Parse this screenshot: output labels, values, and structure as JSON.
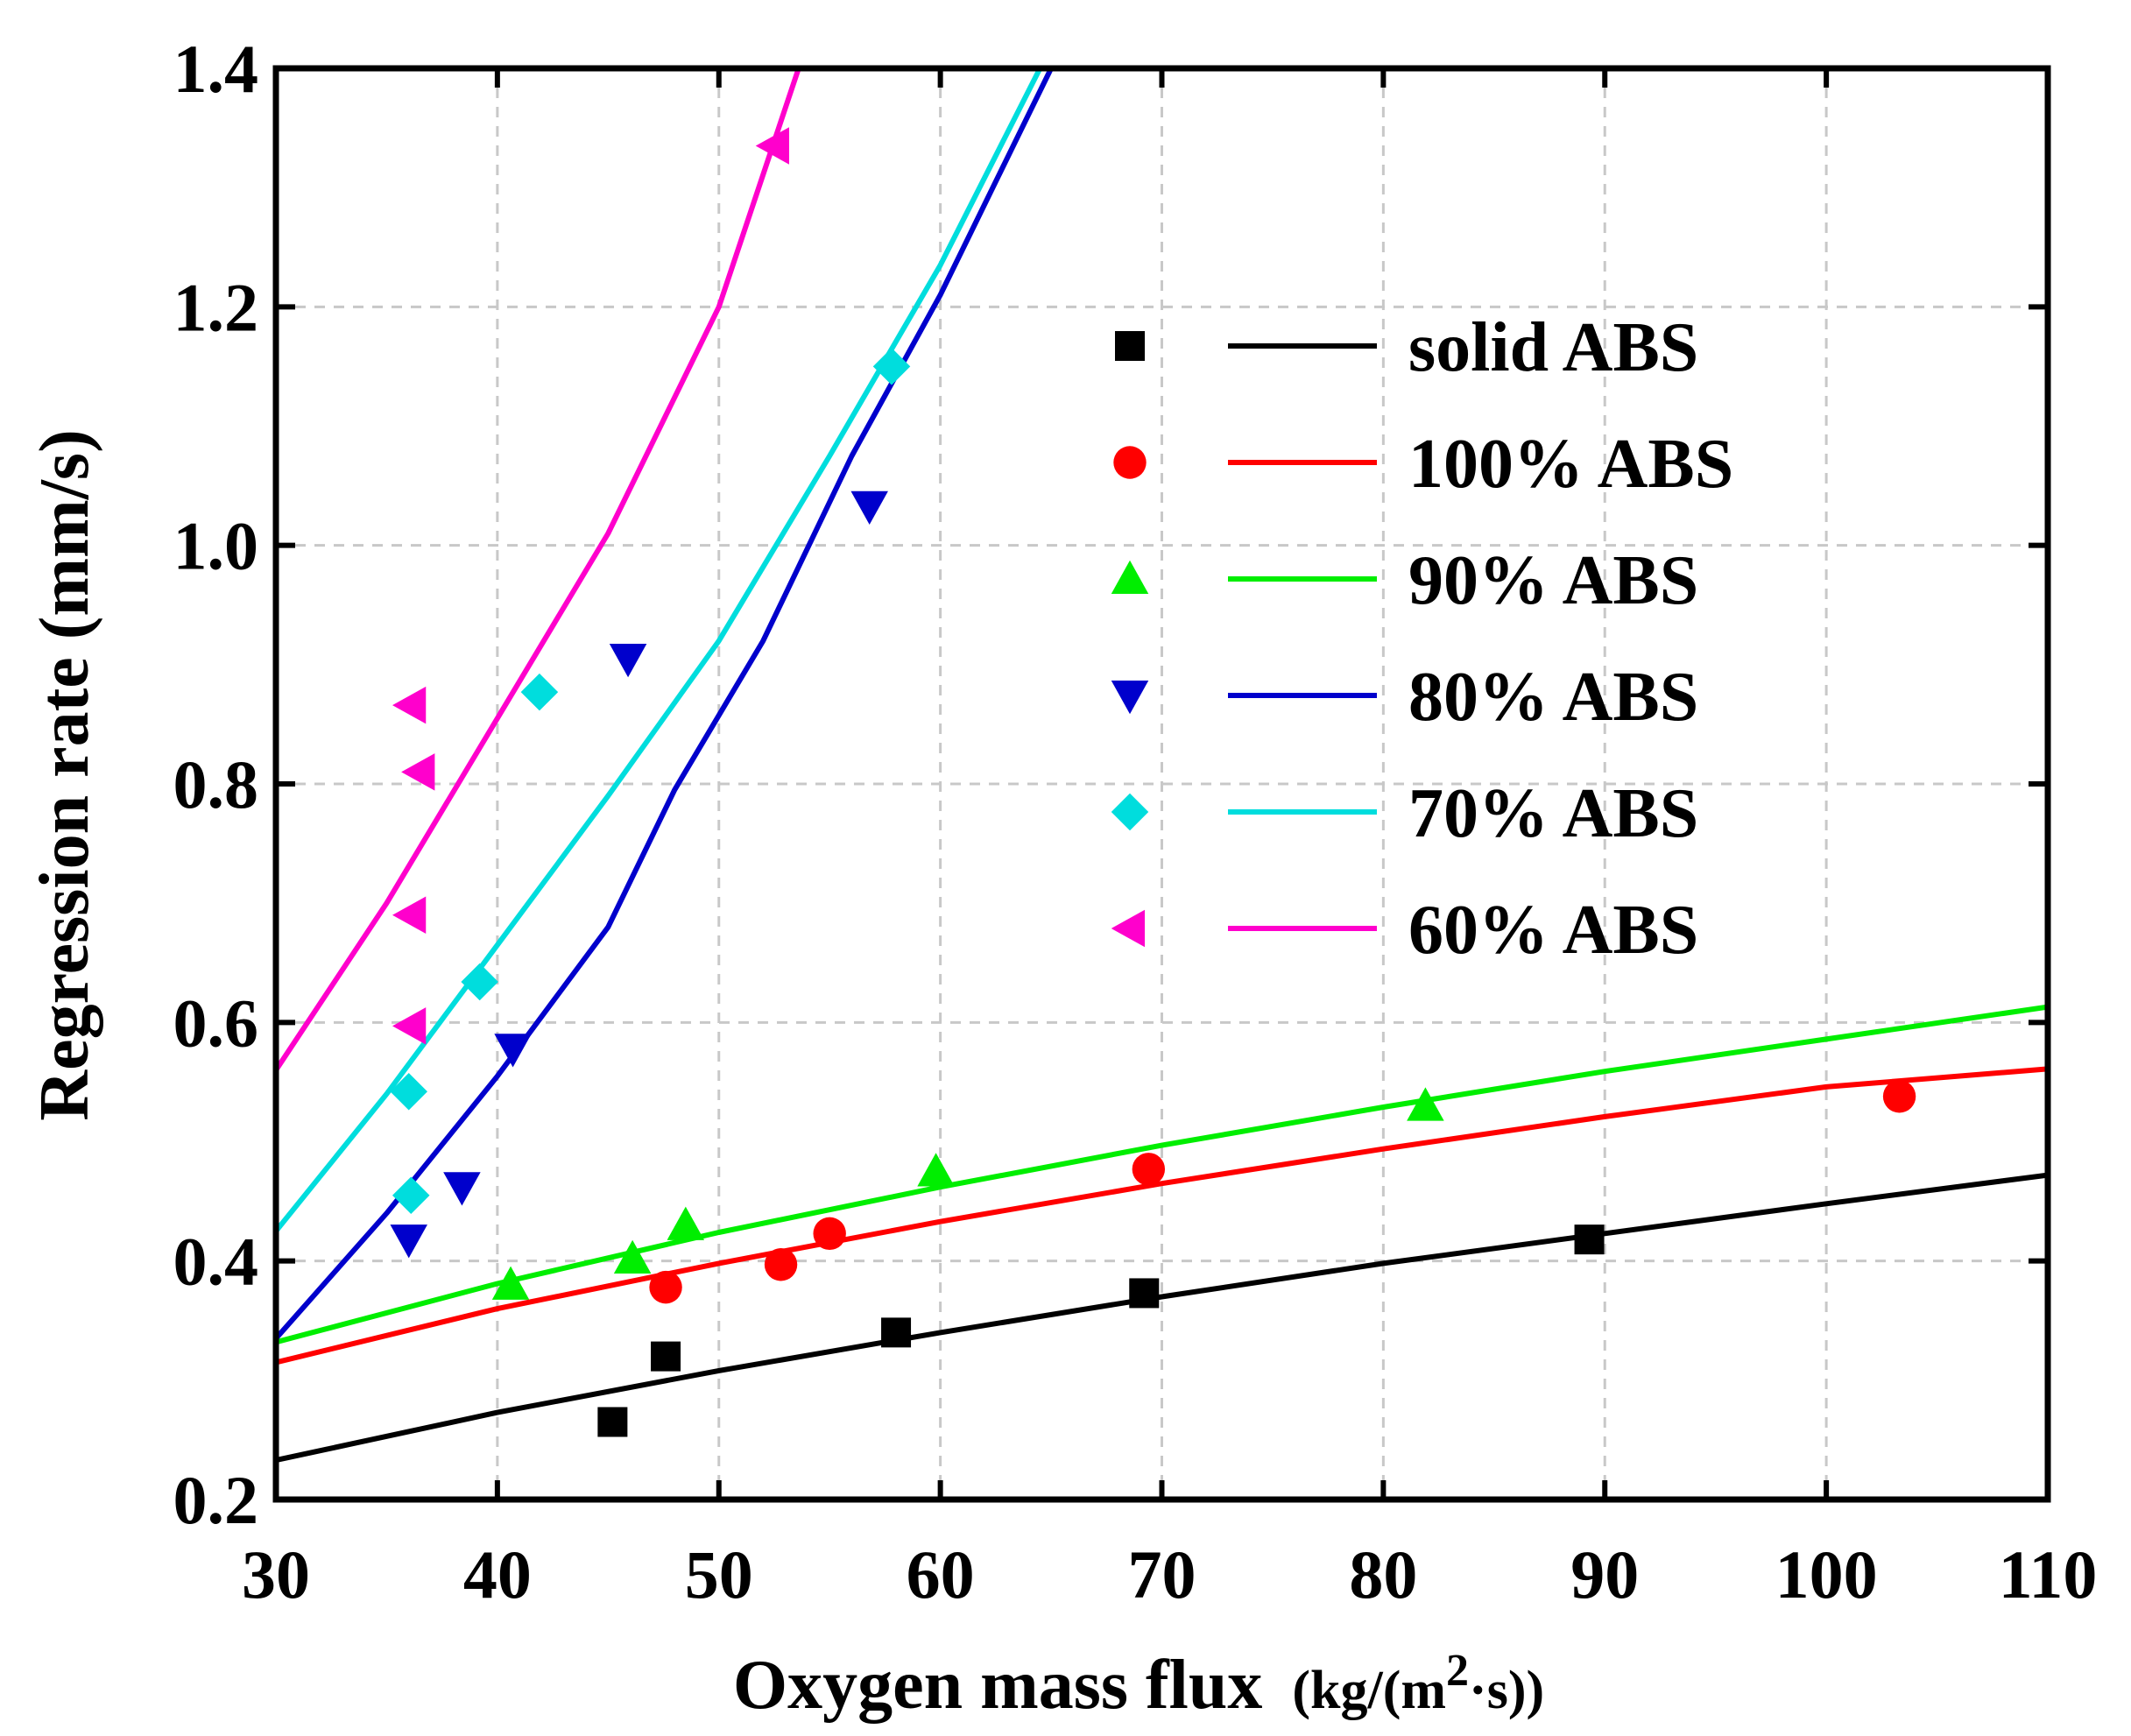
{
  "chart_data": {
    "type": "scatter",
    "title": "",
    "xlabel": "Oxygen mass flux",
    "xlabel_unit_pre": "(kg/(m",
    "xlabel_unit_sup": "2",
    "xlabel_unit_post": "·s))",
    "ylabel": "Regression rate (mm/s)",
    "xlim": [
      30,
      110
    ],
    "ylim": [
      0.2,
      1.4
    ],
    "xticks": [
      30,
      40,
      50,
      60,
      70,
      80,
      90,
      100,
      110
    ],
    "yticks": [
      0.2,
      0.4,
      0.6,
      0.8,
      1.0,
      1.2,
      1.4
    ],
    "xtick_labels": [
      "30",
      "40",
      "50",
      "60",
      "70",
      "80",
      "90",
      "100",
      "110"
    ],
    "ytick_labels": [
      "0.2",
      "0.4",
      "0.6",
      "0.8",
      "1.0",
      "1.2",
      "1.4"
    ],
    "grid": true,
    "legend_position": "upper-right",
    "series": [
      {
        "name": "solid ABS",
        "color": "#000000",
        "marker": "square",
        "points": [
          [
            45.2,
            0.265
          ],
          [
            47.6,
            0.32
          ],
          [
            58.0,
            0.34
          ],
          [
            69.2,
            0.373
          ],
          [
            89.3,
            0.418
          ]
        ],
        "fit": [
          [
            30,
            0.233
          ],
          [
            40,
            0.273
          ],
          [
            50,
            0.308
          ],
          [
            60,
            0.34
          ],
          [
            70,
            0.37
          ],
          [
            80,
            0.398
          ],
          [
            90,
            0.423
          ],
          [
            100,
            0.448
          ],
          [
            110,
            0.472
          ]
        ]
      },
      {
        "name": "100% ABS",
        "color": "#ff0000",
        "marker": "circle",
        "points": [
          [
            47.6,
            0.378
          ],
          [
            52.8,
            0.397
          ],
          [
            55.0,
            0.423
          ],
          [
            69.4,
            0.477
          ],
          [
            103.3,
            0.538
          ]
        ],
        "fit": [
          [
            30,
            0.315
          ],
          [
            40,
            0.36
          ],
          [
            50,
            0.398
          ],
          [
            60,
            0.433
          ],
          [
            70,
            0.465
          ],
          [
            80,
            0.494
          ],
          [
            90,
            0.521
          ],
          [
            100,
            0.546
          ],
          [
            110,
            0.561
          ]
        ]
      },
      {
        "name": "90% ABS",
        "color": "#00ee00",
        "marker": "triangle-up",
        "points": [
          [
            40.6,
            0.38
          ],
          [
            46.1,
            0.402
          ],
          [
            48.5,
            0.43
          ],
          [
            59.8,
            0.475
          ],
          [
            81.9,
            0.53
          ]
        ],
        "fit": [
          [
            30,
            0.332
          ],
          [
            40,
            0.381
          ],
          [
            50,
            0.424
          ],
          [
            60,
            0.462
          ],
          [
            70,
            0.497
          ],
          [
            80,
            0.529
          ],
          [
            90,
            0.559
          ],
          [
            100,
            0.586
          ],
          [
            110,
            0.613
          ]
        ]
      },
      {
        "name": "80% ABS",
        "color": "#0000cc",
        "marker": "triangle-down",
        "points": [
          [
            36.0,
            0.418
          ],
          [
            38.4,
            0.462
          ],
          [
            40.7,
            0.578
          ],
          [
            45.9,
            0.905
          ],
          [
            56.8,
            1.033
          ]
        ],
        "fit": [
          [
            30,
            0.335
          ],
          [
            35,
            0.44
          ],
          [
            40,
            0.555
          ],
          [
            45,
            0.68
          ],
          [
            48,
            0.795
          ],
          [
            52,
            0.92
          ],
          [
            56,
            1.075
          ],
          [
            60,
            1.21
          ],
          [
            65,
            1.4
          ]
        ]
      },
      {
        "name": "70% ABS",
        "color": "#00dddd",
        "marker": "diamond",
        "points": [
          [
            36.1,
            0.455
          ],
          [
            36.0,
            0.542
          ],
          [
            39.2,
            0.634
          ],
          [
            41.9,
            0.877
          ],
          [
            57.8,
            1.15
          ]
        ],
        "fit": [
          [
            30,
            0.425
          ],
          [
            35,
            0.54
          ],
          [
            40,
            0.665
          ],
          [
            45,
            0.79
          ],
          [
            50,
            0.92
          ],
          [
            55,
            1.075
          ],
          [
            60,
            1.235
          ],
          [
            64.5,
            1.4
          ]
        ]
      },
      {
        "name": "60% ABS",
        "color": "#ff00cc",
        "marker": "triangle-left",
        "points": [
          [
            36.1,
            0.597
          ],
          [
            36.1,
            0.69
          ],
          [
            36.5,
            0.81
          ],
          [
            36.1,
            0.866
          ],
          [
            52.5,
            1.335
          ]
        ],
        "fit": [
          [
            30,
            0.56
          ],
          [
            35,
            0.7
          ],
          [
            40,
            0.855
          ],
          [
            45,
            1.01
          ],
          [
            50,
            1.2
          ],
          [
            53.6,
            1.4
          ]
        ]
      }
    ]
  }
}
